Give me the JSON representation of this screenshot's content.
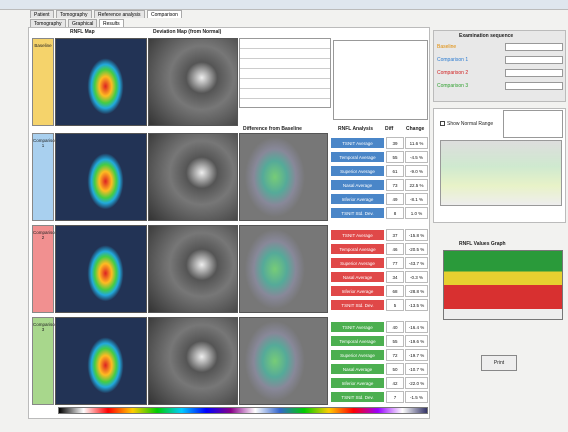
{
  "tabs": [
    "Patient",
    "Tomography",
    "Reference analysis",
    "Comparison"
  ],
  "subtabs": [
    "Tomography",
    "Graphical",
    "Results"
  ],
  "headers": {
    "rnfl_map": "RNFL Map",
    "deviation": "Deviation Map (from Normal)",
    "difference": "Difference from Baseline",
    "analysis": "RNFL Analysis",
    "diff": "Diff",
    "change": "Change"
  },
  "exams": [
    "Baseline",
    "Comparison 1",
    "Comparison 2",
    "Comparison 3"
  ],
  "metrics": [
    "TSNIT Average",
    "Temporal Average",
    "Superior Average",
    "Nasal Average",
    "Inferior Average",
    "TSNIT Std. Dev."
  ],
  "results": [
    {
      "diff": [
        "39",
        "55",
        "61",
        "73",
        "49",
        "8"
      ],
      "change": [
        "11.6 %",
        "-4.5 %",
        "-9.0 %",
        "22.5 %",
        "-8.1 %",
        "1.0 %"
      ]
    },
    {
      "diff": [
        "37",
        "46",
        "77",
        "34",
        "68",
        "5"
      ],
      "change": [
        "-15.8 %",
        "-20.5 %",
        "-43.7 %",
        "-0.3 %",
        "-28.8 %",
        "-13.5 %"
      ]
    },
    {
      "diff": [
        "40",
        "55",
        "72",
        "50",
        "42",
        "7"
      ],
      "change": [
        "-16.4 %",
        "-19.6 %",
        "-19.7 %",
        "-10.7 %",
        "-22.0 %",
        "-1.5 %"
      ]
    }
  ],
  "sequence": {
    "title": "Examination sequence",
    "items": [
      "Baseline",
      "Comparison 1",
      "Comparison 2",
      "Comparison 3"
    ]
  },
  "show_normal_range": "Show Normal Range",
  "graph_title": "RNFL Values Graph",
  "print": "Print"
}
